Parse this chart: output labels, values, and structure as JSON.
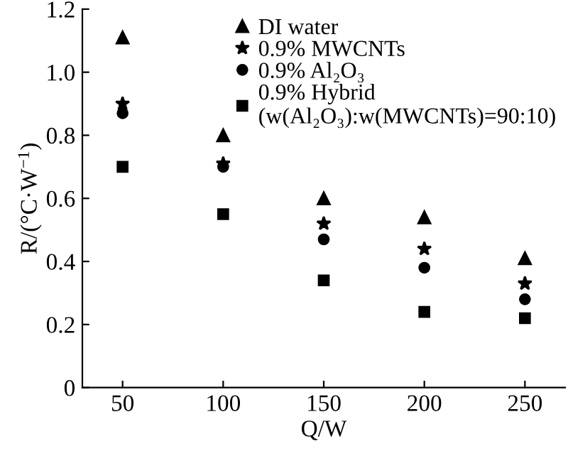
{
  "chart_data": {
    "type": "scatter",
    "xlabel": "Q/W",
    "ylabel": "R/(°C·W$^{−1}$)",
    "x": [
      50,
      100,
      150,
      200,
      250
    ],
    "series": [
      {
        "name": "DI water",
        "color": "#000000",
        "marker": "triangle",
        "values": [
          1.11,
          0.8,
          0.6,
          0.54,
          0.41
        ]
      },
      {
        "name": "0.9% MWCNTs",
        "color": "#000000",
        "marker": "star",
        "values": [
          0.9,
          0.71,
          0.52,
          0.44,
          0.33
        ]
      },
      {
        "name": "0.9% Al₂O₃",
        "color": "#000000",
        "marker": "circle",
        "values": [
          0.87,
          0.7,
          0.47,
          0.38,
          0.28
        ]
      },
      {
        "name": "0.9% Hybrid\n(w(Al₂O₃):w(MWCNTs)=90:10)",
        "color": "#000000",
        "marker": "square",
        "values": [
          0.7,
          0.55,
          0.34,
          0.24,
          0.22
        ]
      }
    ],
    "xlim": [
      30,
      270
    ],
    "ylim": [
      0,
      1.2
    ],
    "xticks": [
      50,
      100,
      150,
      200,
      250
    ],
    "yticks": [
      0,
      {
        "value": 0.2,
        "label": "0.2"
      },
      {
        "value": 0.4,
        "label": "0.4"
      },
      {
        "value": 0.6,
        "label": "0.6"
      },
      {
        "value": 0.8,
        "label": "0.8"
      },
      {
        "value": 1.0,
        "label": "1.0"
      },
      {
        "value": 1.2,
        "label": "1.2"
      }
    ],
    "grid": false,
    "legend": "top right"
  }
}
